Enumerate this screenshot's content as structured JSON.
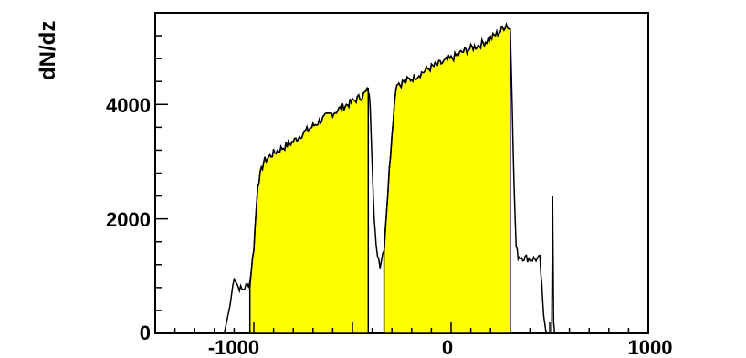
{
  "chart_data": {
    "type": "area",
    "title": "",
    "xlabel": "",
    "ylabel": "dN/dz",
    "xlim": [
      -1500,
      1000
    ],
    "ylim": [
      0,
      5600
    ],
    "xticks": [
      -1000,
      0,
      1000
    ],
    "xtick_labels": [
      "-1000",
      "0",
      "1000"
    ],
    "yticks": [
      0,
      2000,
      4000
    ],
    "ytick_labels": [
      "0",
      "2000",
      "4000"
    ],
    "grid": false,
    "legend": "none",
    "colors": {
      "line": "#000000",
      "fill": "#ffff00",
      "accent": "#4f7fbf"
    },
    "series": [
      {
        "x": [
          -1300,
          -1150,
          -1120,
          -1100,
          -1080,
          -1060,
          -1040,
          -1020,
          -1000,
          -980,
          -950,
          -900,
          -850,
          -800,
          -750,
          -700,
          -650,
          -600,
          -550,
          -500,
          -450,
          -420,
          -410,
          -400,
          -390,
          -380,
          -360,
          -340,
          -320,
          -300,
          -280,
          -270,
          -260,
          -240,
          -200,
          -150,
          -100,
          -50,
          0,
          50,
          100,
          150,
          200,
          250,
          280,
          300,
          310,
          320,
          330,
          340,
          400,
          450,
          460,
          470,
          480,
          490,
          500,
          510,
          515,
          520,
          525,
          530,
          550,
          600,
          900
        ],
        "y": [
          0,
          0,
          500,
          1000,
          820,
          760,
          820,
          900,
          1500,
          2600,
          3000,
          3150,
          3250,
          3350,
          3500,
          3620,
          3750,
          3850,
          3950,
          4050,
          4150,
          4250,
          4000,
          3000,
          2000,
          1500,
          1200,
          1500,
          2500,
          3500,
          4300,
          4400,
          4350,
          4400,
          4450,
          4550,
          4650,
          4720,
          4800,
          4900,
          4980,
          5050,
          5150,
          5280,
          5400,
          5300,
          4000,
          2500,
          1500,
          1350,
          1300,
          1300,
          800,
          300,
          50,
          0,
          0,
          0,
          2350,
          200,
          0,
          0,
          0,
          0,
          0
        ]
      }
    ],
    "shaded_regions": [
      [
        -1020,
        -420
      ],
      [
        -340,
        300
      ]
    ]
  }
}
